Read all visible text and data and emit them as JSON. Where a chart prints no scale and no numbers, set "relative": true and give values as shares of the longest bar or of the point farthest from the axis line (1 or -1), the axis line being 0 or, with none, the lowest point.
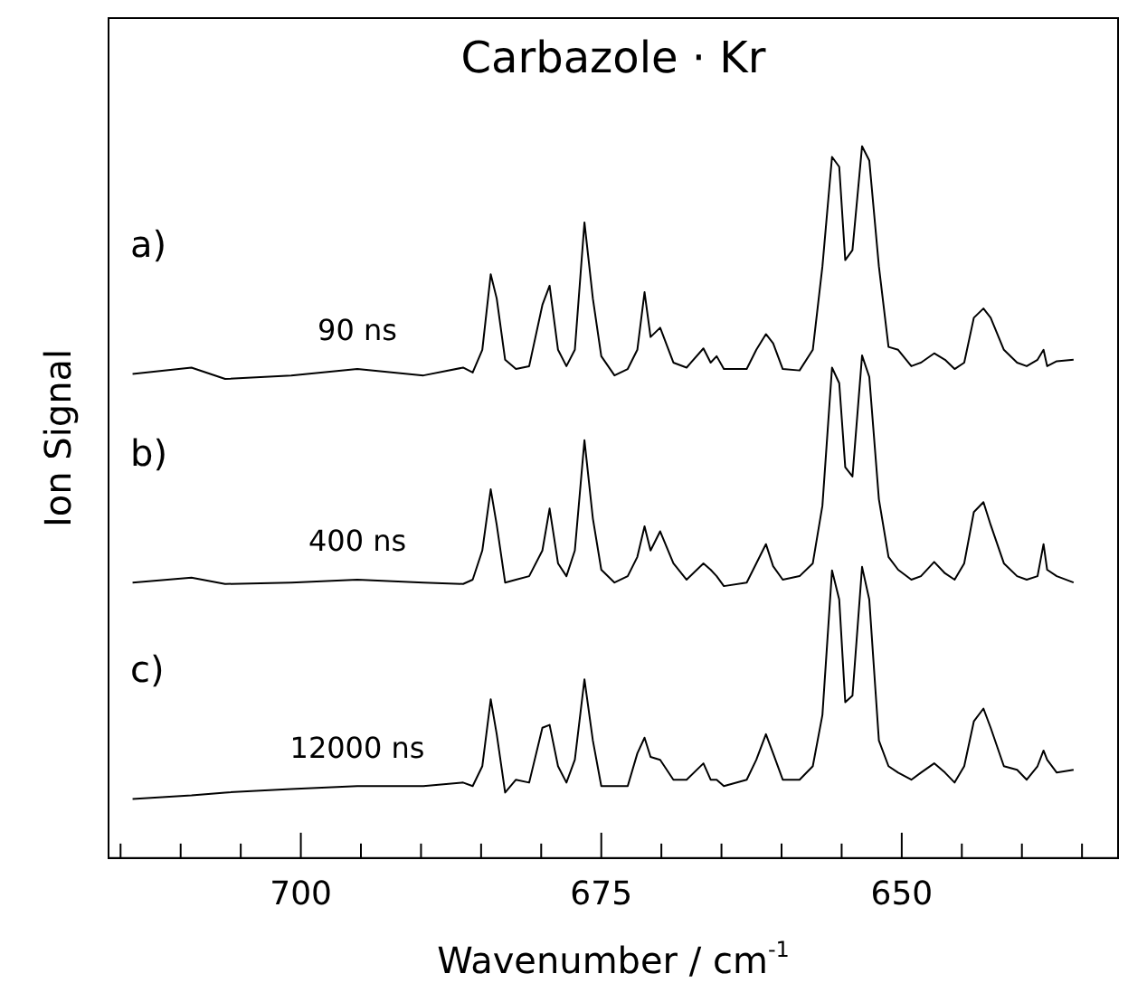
{
  "chart_data": {
    "type": "line",
    "title": "Carbazole · Kr",
    "xlabel": "Wavenumber / cm$^{-1}$",
    "ylabel": "Ion Signal",
    "relative": true,
    "legend": false,
    "grid": false,
    "xlim": [
      716,
      632
    ],
    "xticks": [
      {
        "value": 715,
        "label": null
      },
      {
        "value": 710,
        "label": null
      },
      {
        "value": 705,
        "label": null
      },
      700,
      {
        "value": 695,
        "label": null
      },
      {
        "value": 690,
        "label": null
      },
      {
        "value": 685,
        "label": null
      },
      {
        "value": 680,
        "label": null
      },
      675,
      {
        "value": 670,
        "label": null
      },
      {
        "value": 665,
        "label": null
      },
      {
        "value": 660,
        "label": null
      },
      {
        "value": 655,
        "label": null
      },
      650,
      {
        "value": 645,
        "label": null
      },
      {
        "value": 640,
        "label": null
      },
      {
        "value": 635,
        "label": null
      }
    ],
    "x": [
      714.0,
      709.1,
      706.3,
      700.8,
      695.3,
      689.8,
      686.5,
      685.7,
      684.9,
      684.2,
      683.7,
      683.0,
      682.1,
      681.0,
      679.9,
      679.3,
      678.6,
      677.9,
      677.2,
      676.4,
      675.7,
      675.0,
      673.9,
      672.8,
      672.0,
      671.4,
      670.9,
      670.1,
      669.0,
      667.9,
      666.5,
      665.9,
      665.4,
      664.8,
      662.9,
      662.1,
      661.3,
      660.7,
      659.9,
      658.5,
      657.4,
      656.6,
      655.8,
      655.2,
      654.7,
      654.1,
      653.3,
      652.7,
      651.9,
      651.1,
      650.3,
      649.2,
      648.4,
      647.3,
      646.4,
      645.6,
      644.8,
      644.0,
      643.2,
      642.6,
      641.5,
      640.4,
      639.6,
      638.7,
      638.2,
      637.9,
      637.1,
      635.7
    ],
    "series": [
      {
        "name": "90 ns",
        "color": "#000000",
        "values": [
          0.68,
          0.689,
          0.673,
          0.678,
          0.687,
          0.678,
          0.689,
          0.682,
          0.714,
          0.82,
          0.786,
          0.7,
          0.687,
          0.691,
          0.777,
          0.804,
          0.714,
          0.691,
          0.714,
          0.893,
          0.786,
          0.705,
          0.678,
          0.687,
          0.714,
          0.795,
          0.732,
          0.745,
          0.696,
          0.689,
          0.716,
          0.696,
          0.705,
          0.687,
          0.687,
          0.714,
          0.736,
          0.723,
          0.687,
          0.685,
          0.714,
          0.831,
          0.985,
          0.971,
          0.84,
          0.854,
          1,
          0.98,
          0.831,
          0.718,
          0.714,
          0.691,
          0.696,
          0.709,
          0.7,
          0.687,
          0.696,
          0.759,
          0.772,
          0.759,
          0.714,
          0.696,
          0.691,
          0.7,
          0.714,
          0.691,
          0.698,
          0.7
        ]
      },
      {
        "name": "400 ns",
        "color": "#000000",
        "values": [
          0.387,
          0.394,
          0.385,
          0.387,
          0.391,
          0.387,
          0.385,
          0.391,
          0.432,
          0.518,
          0.468,
          0.387,
          0.391,
          0.396,
          0.432,
          0.491,
          0.414,
          0.396,
          0.432,
          0.587,
          0.477,
          0.405,
          0.387,
          0.396,
          0.423,
          0.466,
          0.432,
          0.459,
          0.414,
          0.391,
          0.414,
          0.405,
          0.396,
          0.382,
          0.387,
          0.414,
          0.441,
          0.41,
          0.391,
          0.396,
          0.414,
          0.495,
          0.689,
          0.667,
          0.549,
          0.536,
          0.706,
          0.676,
          0.504,
          0.423,
          0.405,
          0.391,
          0.396,
          0.416,
          0.4,
          0.391,
          0.414,
          0.486,
          0.5,
          0.468,
          0.414,
          0.396,
          0.391,
          0.396,
          0.441,
          0.405,
          0.396,
          0.387
        ]
      },
      {
        "name": "12000 ns",
        "color": "#000000",
        "values": [
          0.083,
          0.088,
          0.092,
          0.097,
          0.101,
          0.101,
          0.106,
          0.101,
          0.129,
          0.223,
          0.174,
          0.092,
          0.11,
          0.106,
          0.183,
          0.187,
          0.129,
          0.106,
          0.138,
          0.251,
          0.165,
          0.101,
          0.101,
          0.101,
          0.147,
          0.169,
          0.142,
          0.138,
          0.11,
          0.11,
          0.133,
          0.11,
          0.11,
          0.101,
          0.11,
          0.138,
          0.174,
          0.147,
          0.11,
          0.11,
          0.129,
          0.201,
          0.404,
          0.363,
          0.219,
          0.228,
          0.409,
          0.363,
          0.165,
          0.129,
          0.12,
          0.11,
          0.12,
          0.133,
          0.12,
          0.106,
          0.129,
          0.192,
          0.21,
          0.183,
          0.129,
          0.124,
          0.11,
          0.129,
          0.151,
          0.138,
          0.12,
          0.124
        ]
      }
    ],
    "annotations": [
      "a)",
      "b)",
      "c)"
    ]
  }
}
